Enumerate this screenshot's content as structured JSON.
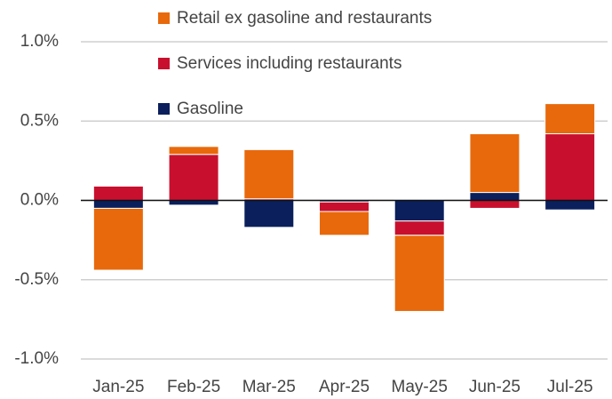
{
  "chart_data": {
    "type": "stacked_bar",
    "categories": [
      "Jan-25",
      "Feb-25",
      "Mar-25",
      "Apr-25",
      "May-25",
      "Jun-25",
      "Jul-25"
    ],
    "series": [
      {
        "name": "Retail ex gasoline and restaurants",
        "color": "#e8690b",
        "values": [
          -0.39,
          0.05,
          0.31,
          -0.15,
          -0.48,
          0.37,
          0.19
        ]
      },
      {
        "name": "Services including restaurants",
        "color": "#c8102e",
        "values": [
          0.09,
          0.29,
          0.01,
          -0.06,
          -0.09,
          -0.05,
          0.42
        ]
      },
      {
        "name": "Gasoline",
        "color": "#0a1f5c",
        "values": [
          -0.05,
          -0.03,
          -0.17,
          -0.01,
          -0.13,
          0.05,
          -0.06
        ]
      }
    ],
    "ylim": [
      -1.0,
      1.0
    ],
    "yticks": [
      {
        "value": -1.0,
        "label": "-1.0%"
      },
      {
        "value": -0.5,
        "label": "-0.5%"
      },
      {
        "value": 0,
        "label": "0.0%"
      },
      {
        "value": 0.5,
        "label": "0.5%"
      },
      {
        "value": 1.0,
        "label": "1.0%"
      }
    ],
    "grid": true,
    "legend": "top"
  }
}
